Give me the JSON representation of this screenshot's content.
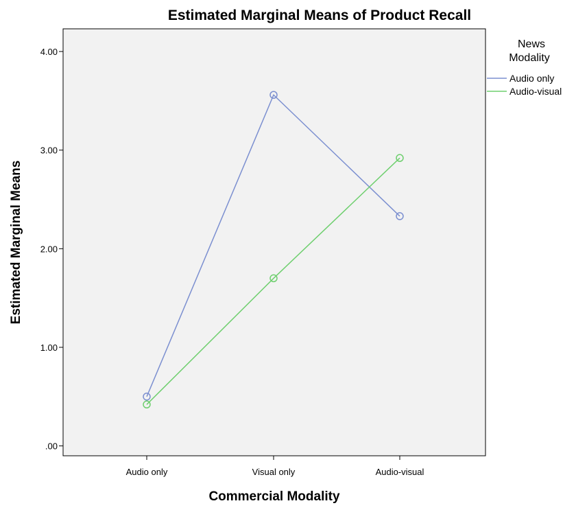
{
  "chart_data": {
    "type": "line",
    "title": "Estimated Marginal Means of Product Recall",
    "xlabel": "Commercial Modality",
    "ylabel": "Estimated Marginal Means",
    "categories": [
      "Audio only",
      "Visual only",
      "Audio-visual"
    ],
    "ylim": [
      -0.1,
      4.23
    ],
    "yticks": [
      0,
      1,
      2,
      3,
      4
    ],
    "ytick_labels": [
      ".00",
      "1.00",
      "2.00",
      "3.00",
      "4.00"
    ],
    "grid": false,
    "legend": {
      "title_lines": [
        "News",
        "Modality"
      ],
      "placement": "right"
    },
    "series": [
      {
        "name": "Audio only",
        "color": "#7b8fd0",
        "values": [
          0.5,
          3.56,
          2.33
        ]
      },
      {
        "name": "Audio-visual",
        "color": "#6ecf6e",
        "values": [
          0.42,
          1.7,
          2.92
        ]
      }
    ]
  }
}
